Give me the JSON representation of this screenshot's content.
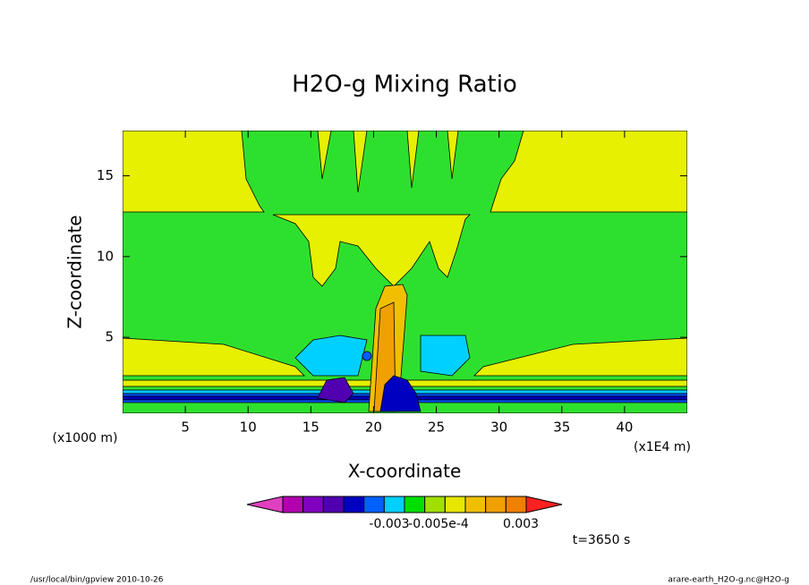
{
  "chart_data": {
    "type": "contour",
    "title": "H2O-g Mixing Ratio",
    "x_label": "X-coordinate",
    "y_label": "Z-coordinate",
    "x_unit": "(x1E4 m)",
    "y_unit": "(x1000 m)",
    "xlim": [
      0,
      45
    ],
    "ylim": [
      0.3,
      17.8
    ],
    "xticks": [
      5,
      10,
      15,
      20,
      25,
      30,
      35,
      40
    ],
    "yticks": [
      5,
      10,
      15
    ],
    "colorbar": {
      "colors": [
        "#e040c0",
        "#b000b0",
        "#8000c0",
        "#5000b0",
        "#0000c0",
        "#0060ff",
        "#00d0ff",
        "#00e000",
        "#a0e000",
        "#e6e600",
        "#f0c000",
        "#f0a000",
        "#f08000",
        "#ff2020"
      ],
      "labels": [
        "-0.003",
        "-0.005e-4",
        "0.003"
      ]
    },
    "annotation": "t=3650 s",
    "footer_left": "/usr/local/bin/gpview  2010-10-26",
    "footer_right": "arare-earth_H2O-g.nc@H2O-g"
  }
}
